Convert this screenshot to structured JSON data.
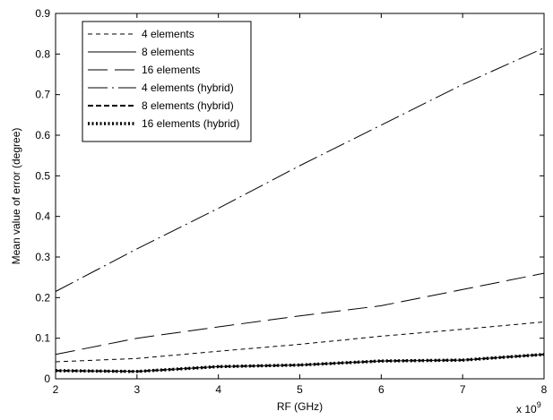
{
  "chart_data": {
    "type": "line",
    "title": "",
    "xlabel": "RF (GHz)",
    "ylabel": "Mean value of error (degree)",
    "x_multiplier": "x 10",
    "x_multiplier_exp": "9",
    "xlim": [
      2,
      8
    ],
    "ylim": [
      0,
      0.9
    ],
    "xticks": [
      "2",
      "3",
      "4",
      "5",
      "6",
      "7",
      "8"
    ],
    "yticks": [
      "0",
      "0.1",
      "0.2",
      "0.3",
      "0.4",
      "0.5",
      "0.6",
      "0.7",
      "0.8",
      "0.9"
    ],
    "grid": false,
    "legend_position": "top-left",
    "x": [
      2,
      3,
      4,
      5,
      6,
      7,
      8
    ],
    "series": [
      {
        "name": "4 elements",
        "style": "short-dash",
        "values": [
          0.042,
          0.05,
          0.068,
          0.085,
          0.105,
          0.122,
          0.14
        ]
      },
      {
        "name": "8 elements",
        "style": "solid",
        "values": [
          0.02,
          0.018,
          0.03,
          0.034,
          0.044,
          0.046,
          0.06
        ]
      },
      {
        "name": "16 elements",
        "style": "long-dash",
        "values": [
          0.06,
          0.1,
          0.128,
          0.155,
          0.18,
          0.22,
          0.26
        ]
      },
      {
        "name": "4 elements (hybrid)",
        "style": "dash-dot",
        "values": [
          0.215,
          0.32,
          0.42,
          0.525,
          0.625,
          0.725,
          0.815
        ]
      },
      {
        "name": "8 elements (hybrid)",
        "style": "bold-dash",
        "values": [
          0.02,
          0.018,
          0.03,
          0.034,
          0.044,
          0.046,
          0.06
        ]
      },
      {
        "name": "16 elements (hybrid)",
        "style": "bold-dot",
        "values": [
          0.02,
          0.018,
          0.03,
          0.034,
          0.044,
          0.046,
          0.06
        ]
      }
    ],
    "colors": {
      "line": "#000000",
      "background": "#ffffff"
    }
  }
}
